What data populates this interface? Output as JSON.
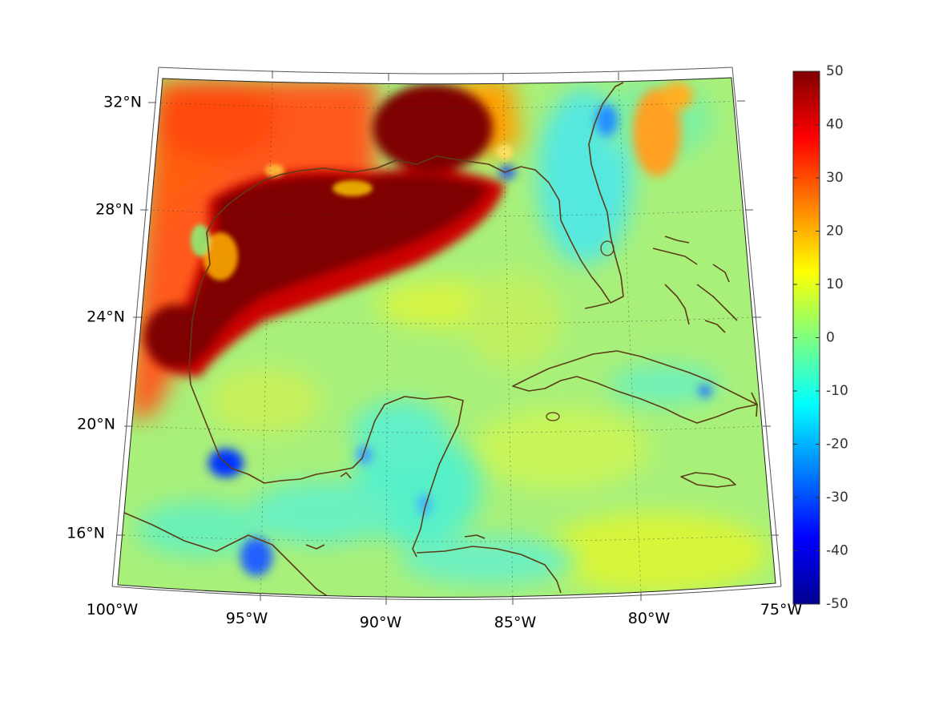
{
  "map": {
    "lon_labels": [
      "100°W",
      "95°W",
      "90°W",
      "85°W",
      "80°W",
      "75°W"
    ],
    "lat_labels": [
      "32°N",
      "28°N",
      "24°N",
      "20°N",
      "16°N"
    ],
    "colorbar": {
      "colormap": "jet",
      "min": -50,
      "max": 50,
      "tick_labels": [
        "50",
        "40",
        "30",
        "20",
        "10",
        "0",
        "-10",
        "-20",
        "-30",
        "-40",
        "-50"
      ]
    },
    "colors": {
      "coastline": "#5c3d17",
      "background_field": "#a8f07a"
    }
  }
}
